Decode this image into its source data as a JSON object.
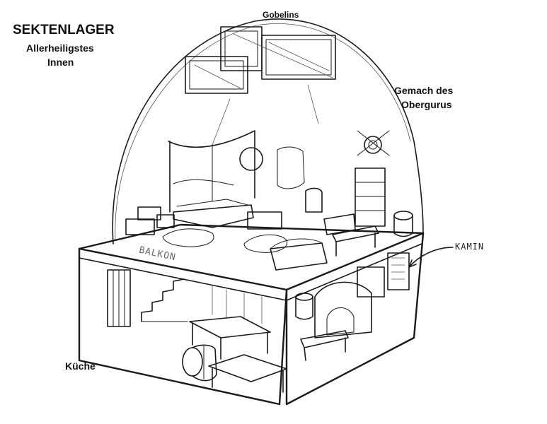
{
  "title": "SEKTENLAGER",
  "subtitle_line1": "Allerheiligstes",
  "subtitle_line2": "Innen",
  "labels": {
    "gobelins": "Gobelins",
    "gemach_line1": "Gemach des",
    "gemach_line2": "Obergurus",
    "kamin": "KAMIN",
    "balkon": "BALKON",
    "kueche": "Küche"
  },
  "colors": {
    "ink": "#1a1a1a",
    "paper": "#ffffff"
  }
}
